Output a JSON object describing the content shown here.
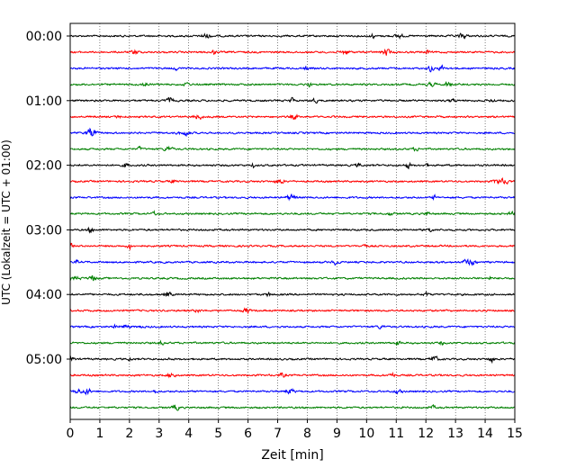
{
  "chart_data": {
    "type": "line",
    "title": "",
    "xlabel": "Zeit  [min]",
    "ylabel": "UTC (Lokalzeit = UTC + 01:00)",
    "xlim": [
      0,
      15
    ],
    "x_ticks": [
      "0",
      "1",
      "2",
      "3",
      "4",
      "5",
      "6",
      "7",
      "8",
      "9",
      "10",
      "11",
      "12",
      "13",
      "14",
      "15"
    ],
    "y_ticks": [
      "00:00",
      "01:00",
      "02:00",
      "03:00",
      "04:00",
      "05:00"
    ],
    "trace_count": 24,
    "trace_interval_min": 15,
    "trace_colors": [
      "#000000",
      "#ff0000",
      "#0000ff",
      "#008000"
    ],
    "grid": "vertical dotted lines at each minute",
    "legend": "none"
  }
}
